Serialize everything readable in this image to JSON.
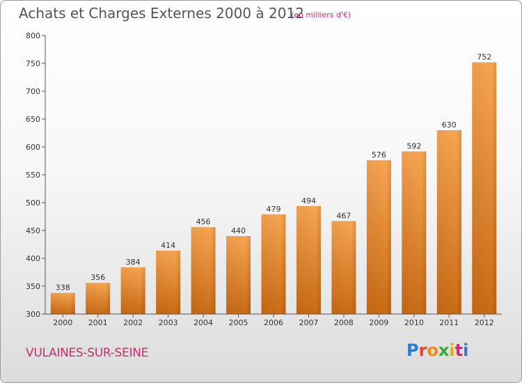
{
  "header": {
    "title": "Achats et Charges Externes 2000 à 2012",
    "subtitle": "(en milliers d'€)"
  },
  "footer": {
    "town": "VULAINES-SUR-SEINE",
    "logo": {
      "text": "Proxiti",
      "letters": [
        "P",
        "r",
        "o",
        "x",
        "i",
        "t",
        "i"
      ],
      "colors": [
        "#2a7bd3",
        "#e9442d",
        "#f08c1e",
        "#3ba53b",
        "#e2b000",
        "#c3306d",
        "#2a7bd3"
      ]
    }
  },
  "colors": {
    "bar_top": "#f8a552",
    "bar_bottom": "#c96b15",
    "accent": "#c3306d"
  },
  "chart_data": {
    "type": "bar",
    "title": "Achats et Charges Externes 2000 à 2012",
    "subtitle": "(en milliers d'€)",
    "xlabel": "",
    "ylabel": "",
    "categories": [
      "2000",
      "2001",
      "2002",
      "2003",
      "2004",
      "2005",
      "2006",
      "2007",
      "2008",
      "2009",
      "2010",
      "2011",
      "2012"
    ],
    "values": [
      338,
      356,
      384,
      414,
      456,
      440,
      479,
      494,
      467,
      576,
      592,
      630,
      752
    ],
    "ylim": [
      300,
      800
    ],
    "yticks": [
      300,
      350,
      400,
      450,
      500,
      550,
      600,
      650,
      700,
      750,
      800
    ],
    "grid": false,
    "data_labels": true
  }
}
